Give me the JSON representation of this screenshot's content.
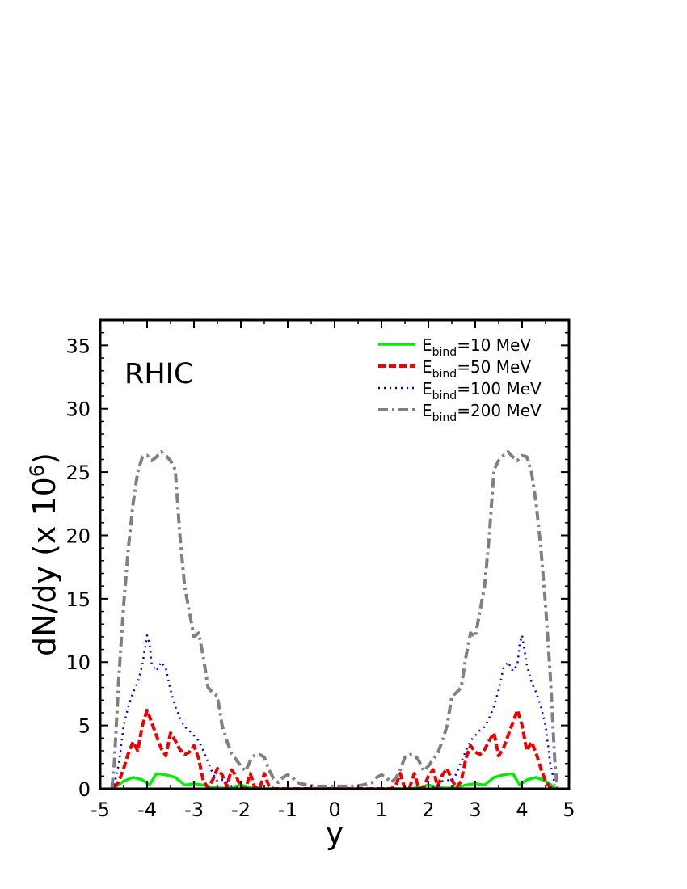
{
  "chart_data": {
    "type": "line",
    "annotation": "RHIC",
    "xlabel": "y",
    "ylabel": "dN/dy (x 10",
    "ylabel_sup": "6",
    "ylabel_end": ")",
    "xlim": [
      -5,
      5
    ],
    "ylim": [
      0,
      37
    ],
    "x_ticks": [
      -5,
      -4,
      -3,
      -2,
      -1,
      0,
      1,
      2,
      3,
      4,
      5
    ],
    "y_ticks": [
      0,
      5,
      10,
      15,
      20,
      25,
      30,
      35
    ],
    "grid": false,
    "legend_position": "top-right",
    "series": [
      {
        "name": "E_bind=10 MeV",
        "legend_main": "E",
        "legend_sub": "bind",
        "legend_rest": "=10 MeV",
        "color": "#00ee00",
        "dash": "solid",
        "x": [
          -4.7,
          -4.5,
          -4.3,
          -4.1,
          -3.95,
          -3.8,
          -3.6,
          -3.4,
          -3.2,
          -3.0,
          -2.8,
          -2.6,
          -2.4,
          -2.2,
          -2.0,
          -1.8,
          -1.6,
          -1.4,
          -1.2,
          -1.0,
          -0.5,
          0.0,
          0.5,
          1.0,
          1.2,
          1.4,
          1.6,
          1.8,
          2.0,
          2.2,
          2.4,
          2.6,
          2.8,
          3.0,
          3.2,
          3.4,
          3.6,
          3.8,
          3.95,
          4.1,
          4.3,
          4.5,
          4.7
        ],
        "y": [
          0.1,
          0.6,
          0.9,
          0.7,
          0.3,
          1.2,
          1.1,
          0.9,
          0.3,
          0.4,
          0.3,
          0.1,
          0.05,
          0.1,
          0.3,
          0.1,
          0.0,
          0.0,
          0.0,
          0.0,
          0.0,
          0.0,
          0.0,
          0.0,
          0.0,
          0.0,
          0.0,
          0.1,
          0.3,
          0.1,
          0.05,
          0.1,
          0.3,
          0.4,
          0.3,
          0.9,
          1.1,
          1.2,
          0.3,
          0.7,
          0.9,
          0.6,
          0.1
        ]
      },
      {
        "name": "E_bind=50 MeV",
        "legend_main": "E",
        "legend_sub": "bind",
        "legend_rest": "=50 MeV",
        "color": "#ee0000",
        "dash": "dashed",
        "x": [
          -4.7,
          -4.6,
          -4.5,
          -4.4,
          -4.3,
          -4.2,
          -4.1,
          -4.0,
          -3.9,
          -3.8,
          -3.7,
          -3.6,
          -3.5,
          -3.4,
          -3.3,
          -3.2,
          -3.1,
          -3.0,
          -2.9,
          -2.8,
          -2.7,
          -2.6,
          -2.5,
          -2.4,
          -2.3,
          -2.2,
          -2.1,
          -2.0,
          -1.9,
          -1.8,
          -1.7,
          -1.6,
          -1.5,
          -1.4,
          -1.3,
          -1.2,
          -1.0,
          0.0,
          1.0,
          1.2,
          1.3,
          1.4,
          1.5,
          1.6,
          1.7,
          1.8,
          1.9,
          2.0,
          2.1,
          2.2,
          2.3,
          2.4,
          2.5,
          2.6,
          2.7,
          2.8,
          2.9,
          3.0,
          3.1,
          3.2,
          3.3,
          3.4,
          3.5,
          3.6,
          3.7,
          3.8,
          3.9,
          4.0,
          4.1,
          4.2,
          4.3,
          4.4,
          4.5,
          4.6,
          4.7
        ],
        "y": [
          0.1,
          0.6,
          1.6,
          2.8,
          3.7,
          3.0,
          5.0,
          6.2,
          5.2,
          4.2,
          3.2,
          2.6,
          4.4,
          3.8,
          3.1,
          2.7,
          2.9,
          3.4,
          2.4,
          0.6,
          0.1,
          0.7,
          1.6,
          1.1,
          0.2,
          1.5,
          1.0,
          0.1,
          0.0,
          1.2,
          0.1,
          0.0,
          1.2,
          0.2,
          0.0,
          0.0,
          0.0,
          0.0,
          0.0,
          0.0,
          0.2,
          1.2,
          0.0,
          0.1,
          1.2,
          0.0,
          0.1,
          1.0,
          1.5,
          0.2,
          1.1,
          1.6,
          0.7,
          0.1,
          0.6,
          2.4,
          3.4,
          2.9,
          2.7,
          3.1,
          3.8,
          4.4,
          2.6,
          3.2,
          4.2,
          5.2,
          6.2,
          5.0,
          3.0,
          3.7,
          2.8,
          1.6,
          0.6,
          0.1,
          0.0
        ]
      },
      {
        "name": "E_bind=100 MeV",
        "legend_main": "E",
        "legend_sub": "bind",
        "legend_rest": "=100 MeV",
        "color": "#0000ee",
        "dash": "dotted",
        "x": [
          -4.7,
          -4.6,
          -4.5,
          -4.4,
          -4.3,
          -4.2,
          -4.1,
          -4.0,
          -3.95,
          -3.9,
          -3.8,
          -3.7,
          -3.6,
          -3.5,
          -3.4,
          -3.3,
          -3.2,
          -3.1,
          -3.0,
          -2.9,
          -2.8,
          -2.7,
          -2.6,
          -2.5,
          -2.4,
          -2.3,
          -2.2,
          -2.1,
          -2.0,
          -1.9,
          -1.8,
          -1.7,
          -1.6,
          -1.5,
          -1.4,
          -1.3,
          -1.2,
          -1.1,
          -1.0,
          0.0,
          1.0,
          1.1,
          1.2,
          1.3,
          1.4,
          1.5,
          1.6,
          1.7,
          1.8,
          1.9,
          2.0,
          2.1,
          2.2,
          2.3,
          2.4,
          2.5,
          2.6,
          2.7,
          2.8,
          2.9,
          3.0,
          3.1,
          3.2,
          3.3,
          3.4,
          3.5,
          3.6,
          3.7,
          3.8,
          3.9,
          3.95,
          4.0,
          4.1,
          4.2,
          4.3,
          4.4,
          4.5,
          4.6,
          4.7
        ],
        "y": [
          0.3,
          2.0,
          5.0,
          6.5,
          7.6,
          8.4,
          9.8,
          12.1,
          11.5,
          9.8,
          9.3,
          10.0,
          9.5,
          7.8,
          6.5,
          5.6,
          4.9,
          4.6,
          4.2,
          3.8,
          3.0,
          2.1,
          1.2,
          0.6,
          0.7,
          0.6,
          0.2,
          0.1,
          0.0,
          0.0,
          0.1,
          0.0,
          0.0,
          0.0,
          0.0,
          0.0,
          0.0,
          0.0,
          0.0,
          0.0,
          0.0,
          0.0,
          0.0,
          0.0,
          0.0,
          0.0,
          0.0,
          0.0,
          0.1,
          0.0,
          0.0,
          0.1,
          0.2,
          0.6,
          0.7,
          0.6,
          1.2,
          2.1,
          3.0,
          3.8,
          4.2,
          4.6,
          4.9,
          5.6,
          6.5,
          7.8,
          9.5,
          10.0,
          9.3,
          9.8,
          11.5,
          12.1,
          9.8,
          8.4,
          7.6,
          6.5,
          5.0,
          2.0,
          0.3
        ]
      },
      {
        "name": "E_bind=200 MeV",
        "legend_main": "E",
        "legend_sub": "bind",
        "legend_rest": "=200 MeV",
        "color": "#808080",
        "dash": "dashdot",
        "x": [
          -4.75,
          -4.7,
          -4.6,
          -4.5,
          -4.4,
          -4.3,
          -4.2,
          -4.1,
          -4.0,
          -3.9,
          -3.8,
          -3.7,
          -3.6,
          -3.5,
          -3.4,
          -3.3,
          -3.2,
          -3.1,
          -3.0,
          -2.9,
          -2.8,
          -2.7,
          -2.6,
          -2.5,
          -2.4,
          -2.3,
          -2.2,
          -2.1,
          -2.0,
          -1.9,
          -1.8,
          -1.7,
          -1.6,
          -1.5,
          -1.4,
          -1.3,
          -1.2,
          -1.1,
          -1.0,
          -0.9,
          -0.8,
          -0.6,
          -0.4,
          -0.2,
          0.0,
          0.2,
          0.4,
          0.6,
          0.8,
          0.9,
          1.0,
          1.1,
          1.2,
          1.3,
          1.4,
          1.5,
          1.6,
          1.7,
          1.8,
          1.9,
          2.0,
          2.1,
          2.2,
          2.3,
          2.4,
          2.5,
          2.6,
          2.7,
          2.8,
          2.9,
          3.0,
          3.1,
          3.2,
          3.3,
          3.4,
          3.5,
          3.6,
          3.7,
          3.8,
          3.9,
          4.0,
          4.1,
          4.2,
          4.3,
          4.4,
          4.5,
          4.6,
          4.7,
          4.75
        ],
        "y": [
          0.1,
          2.0,
          9.0,
          14.5,
          19.0,
          22.5,
          25.0,
          26.2,
          26.3,
          25.9,
          26.2,
          26.6,
          26.3,
          25.9,
          25.2,
          20.0,
          16.0,
          14.0,
          12.0,
          12.3,
          10.4,
          8.0,
          7.6,
          7.3,
          5.0,
          3.8,
          2.8,
          2.3,
          1.8,
          1.4,
          2.2,
          2.7,
          2.7,
          2.5,
          1.5,
          0.8,
          0.5,
          0.9,
          1.1,
          0.9,
          0.5,
          0.3,
          0.2,
          0.2,
          0.2,
          0.2,
          0.2,
          0.3,
          0.5,
          0.9,
          1.1,
          0.9,
          0.5,
          0.8,
          1.5,
          2.5,
          2.7,
          2.7,
          2.2,
          1.4,
          1.8,
          2.3,
          2.8,
          3.8,
          5.0,
          7.3,
          7.6,
          8.0,
          10.4,
          12.3,
          12.0,
          14.0,
          16.0,
          20.0,
          25.2,
          25.9,
          26.3,
          26.6,
          26.2,
          25.9,
          26.3,
          26.2,
          25.0,
          22.5,
          19.0,
          14.5,
          9.0,
          2.0,
          0.1
        ]
      }
    ]
  }
}
